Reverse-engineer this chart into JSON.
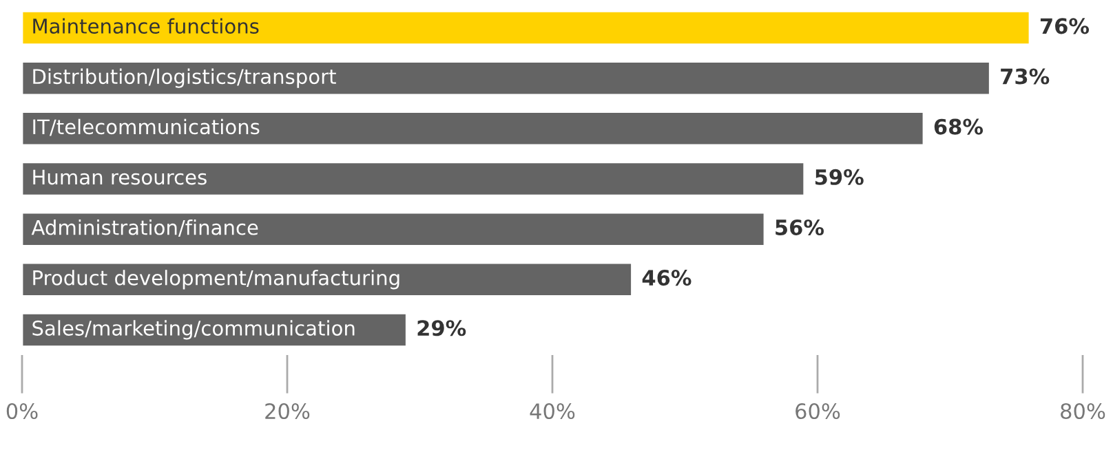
{
  "chart_data": {
    "type": "bar",
    "orientation": "horizontal",
    "categories": [
      "Maintenance functions",
      "Distribution/logistics/transport",
      "IT/telecommunications",
      "Human resources",
      "Administration/finance",
      "Product development/manufacturing",
      "Sales/marketing/communication"
    ],
    "values": [
      76,
      73,
      68,
      59,
      56,
      46,
      29
    ],
    "colors": [
      "#ffd200",
      "#646464",
      "#646464",
      "#646464",
      "#646464",
      "#646464",
      "#646464"
    ],
    "value_labels": [
      "76%",
      "73%",
      "68%",
      "59%",
      "56%",
      "46%",
      "29%"
    ],
    "xlim": [
      0,
      80
    ],
    "xticks": [
      {
        "value": 0,
        "label": "0%"
      },
      {
        "value": 20,
        "label": "20%"
      },
      {
        "value": 40,
        "label": "40%"
      },
      {
        "value": 60,
        "label": "60%"
      },
      {
        "value": 80,
        "label": "80%"
      }
    ],
    "grid": false,
    "legend": false
  }
}
